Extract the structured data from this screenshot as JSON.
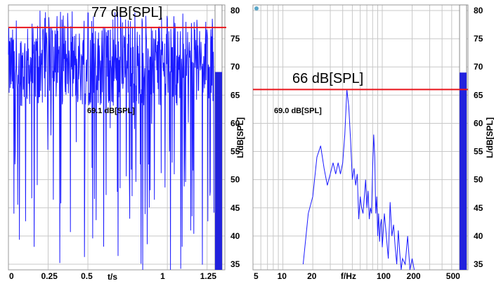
{
  "colors": {
    "trace": "#1a1aff",
    "limit": "#e8141b",
    "bar": "#2222dd",
    "grid": "#c8c8c8"
  },
  "left": {
    "limit_label": "77 dB[SPL]",
    "level_label": "69.1 dB[SPL]",
    "x_axis_label": "t/s",
    "y_axis_label": "L/dB[SPL]",
    "x_ticks": [
      "0",
      "0.25",
      "0.5",
      "1",
      "1.25"
    ],
    "y_ticks": [
      "80",
      "75",
      "70",
      "65",
      "60",
      "55",
      "50",
      "45",
      "40",
      "35"
    ]
  },
  "right": {
    "limit_label": "66 dB[SPL]",
    "level_label": "69.0 dB[SPL]",
    "x_axis_label": "f/Hz",
    "y_axis_label": "L/dB[SPL]",
    "x_ticks": [
      "5",
      "10",
      "20",
      "100",
      "200",
      "500"
    ],
    "y_ticks": [
      "80",
      "75",
      "70",
      "65",
      "60",
      "55",
      "50",
      "45",
      "40",
      "35"
    ]
  },
  "chart_data": [
    {
      "type": "line",
      "xlabel": "t/s",
      "ylabel": "L/dB[SPL]",
      "xlim": [
        0,
        1.3
      ],
      "ylim": [
        34,
        81
      ],
      "limit_line": 77,
      "level_bar": 69.1,
      "series": [
        {
          "values": []
        }
      ]
    },
    {
      "type": "line",
      "xlabel": "f/Hz",
      "ylabel": "L/dB[SPL]",
      "x_scale": "log",
      "xlim": [
        5,
        600
      ],
      "ylim": [
        34,
        81
      ],
      "limit_line": 66,
      "level_bar": 69.0,
      "series": [
        {
          "x": [
            16,
            18,
            20,
            22,
            24,
            26,
            28,
            30,
            32,
            34,
            36,
            38,
            40,
            42,
            44,
            46,
            48,
            50,
            52,
            54,
            56,
            58,
            60,
            62,
            64,
            66,
            68,
            70,
            72,
            74,
            76,
            78,
            80,
            82,
            84,
            86,
            88,
            90,
            92,
            94,
            96,
            98,
            100,
            105,
            110,
            115,
            120,
            125,
            130,
            135,
            140,
            145,
            150,
            155,
            160,
            170,
            180,
            190,
            200,
            210
          ],
          "y": [
            35,
            44,
            47,
            54,
            56,
            52,
            49,
            51,
            53,
            51,
            53,
            51,
            53,
            58,
            66,
            63,
            57,
            50,
            52,
            49,
            51,
            43,
            47,
            45,
            44,
            47,
            50,
            45,
            48,
            43,
            45,
            44,
            52,
            58,
            54,
            44,
            47,
            40,
            44,
            39,
            42,
            43,
            38,
            44,
            40,
            36,
            46,
            40,
            42,
            38,
            35,
            41,
            37,
            34,
            36,
            35,
            40,
            34,
            36,
            34
          ]
        }
      ]
    }
  ]
}
